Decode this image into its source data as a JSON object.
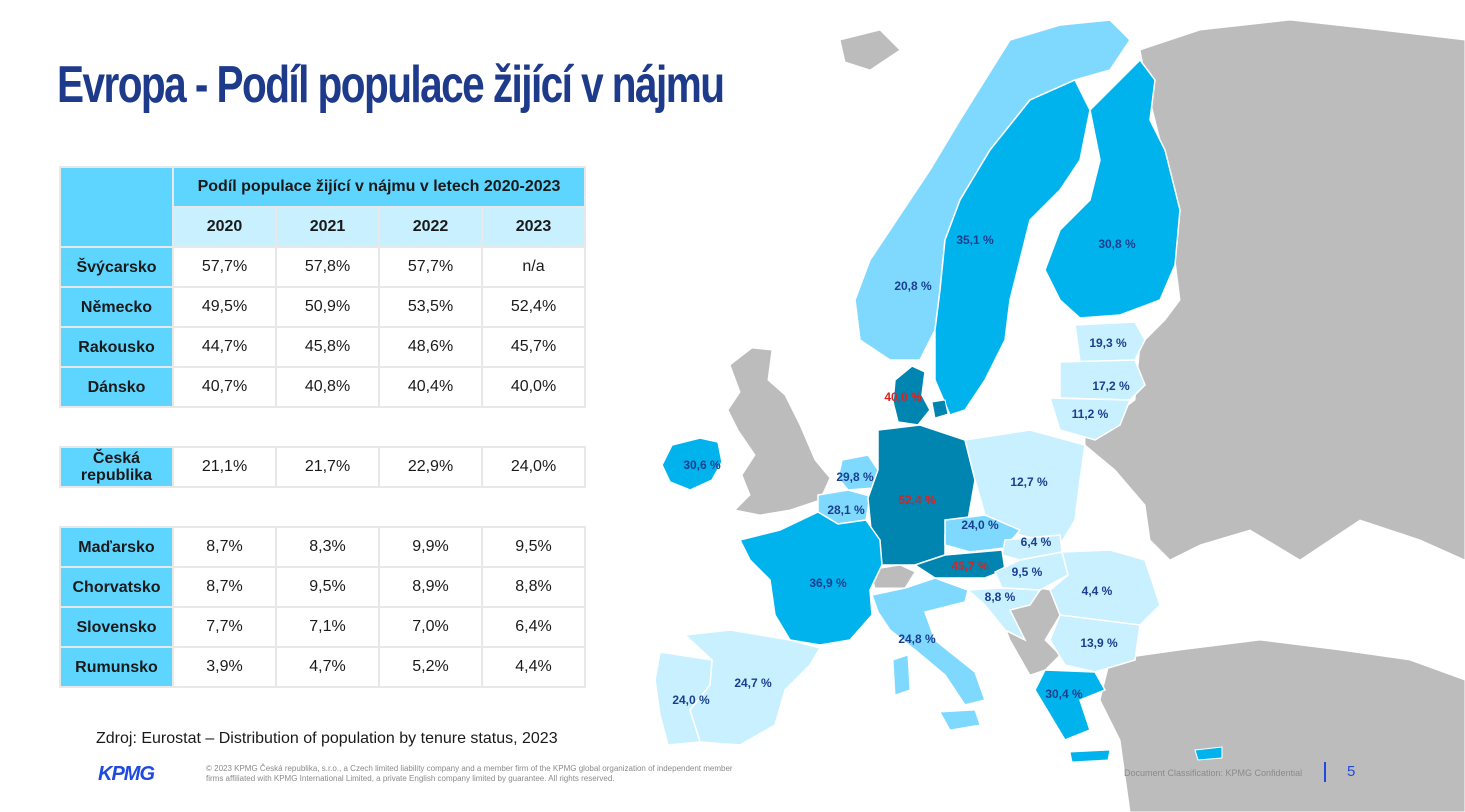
{
  "title": "Evropa - Podíl populace žijící v nájmu",
  "table": {
    "group_header": "Podíl populace žijící v nájmu v letech 2020-2023",
    "years": [
      "2020",
      "2021",
      "2022",
      "2023"
    ],
    "rows": [
      {
        "country": "Švýcarsko",
        "values": [
          "57,7%",
          "57,8%",
          "57,7%",
          "n/a"
        ]
      },
      {
        "country": "Německo",
        "values": [
          "49,5%",
          "50,9%",
          "53,5%",
          "52,4%"
        ]
      },
      {
        "country": "Rakousko",
        "values": [
          "44,7%",
          "45,8%",
          "48,6%",
          "45,7%"
        ]
      },
      {
        "country": "Dánsko",
        "values": [
          "40,7%",
          "40,8%",
          "40,4%",
          "40,0%"
        ]
      },
      {
        "country": "Česká republika",
        "values": [
          "21,1%",
          "21,7%",
          "22,9%",
          "24,0%"
        ]
      },
      {
        "country": "Maďarsko",
        "values": [
          "8,7%",
          "8,3%",
          "9,9%",
          "9,5%"
        ]
      },
      {
        "country": "Chorvatsko",
        "values": [
          "8,7%",
          "9,5%",
          "8,9%",
          "8,8%"
        ]
      },
      {
        "country": "Slovensko",
        "values": [
          "7,7%",
          "7,1%",
          "7,0%",
          "6,4%"
        ]
      },
      {
        "country": "Rumunsko",
        "values": [
          "3,9%",
          "4,7%",
          "5,2%",
          "4,4%"
        ]
      }
    ]
  },
  "source": "Zdroj: Eurostat – Distribution of population by tenure status, 2023",
  "map": {
    "colors": {
      "dark": "#0084b0",
      "mid": "#00b3ec",
      "light": "#7fd9ff",
      "pale": "#c9f0ff",
      "grey": "#bcbcbc",
      "label_blue": "#1a3f8f",
      "label_red": "#e02020"
    },
    "labels": {
      "norway": "20,8 %",
      "sweden": "35,1 %",
      "finland": "30,8 %",
      "estonia": "19,3 %",
      "latvia": "17,2 %",
      "lithuania": "11,2 %",
      "denmark": "40,0 %",
      "ireland": "30,6 %",
      "netherlands": "29,8 %",
      "belgium": "28,1 %",
      "germany": "52,4 %",
      "poland": "12,7 %",
      "czechia": "24,0 %",
      "slovakia": "6,4 %",
      "austria": "45,7 %",
      "hungary": "9,5 %",
      "croatia": "8,8 %",
      "romania": "4,4 %",
      "bulgaria": "13,9 %",
      "france": "36,9 %",
      "italy": "24,8 %",
      "spain": "24,7 %",
      "portugal": "24,0 %",
      "greece": "30,4 %"
    }
  },
  "footer": {
    "logo": "KPMG",
    "legal": "© 2023 KPMG Česká republika, s.r.o., a Czech limited liability company and a member firm of the KPMG global organization of independent member firms affiliated with KPMG International Limited, a private English company limited by guarantee. All rights reserved.",
    "classification": "Document Classification: KPMG Confidential",
    "page_number": "5"
  }
}
